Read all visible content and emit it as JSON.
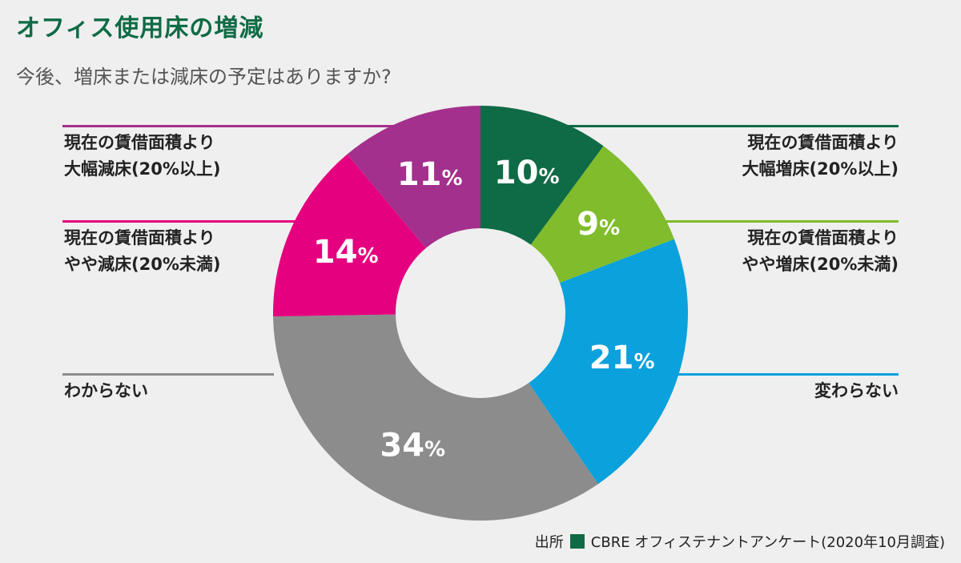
{
  "title": "オフィス使用床の増減",
  "subtitle": "今後、増床または減床の予定はありますか?",
  "source": {
    "prefix": "出所",
    "text": "CBRE オフィステナントアンケート(2020年10月調査)",
    "square_color": "#0f6b45"
  },
  "chart_data": {
    "type": "pie",
    "donut": true,
    "start_angle_deg": 0,
    "direction": "clockwise",
    "slices": [
      {
        "label_lines": [
          "現在の賃借面積より",
          "大幅増床(20%以上)"
        ],
        "value": 10,
        "display": "10",
        "color": "#0f6b45",
        "label_side": "right"
      },
      {
        "label_lines": [
          "現在の賃借面積より",
          "やや増床(20%未満)"
        ],
        "value": 9,
        "display": "9",
        "color": "#80bc2c",
        "label_side": "right"
      },
      {
        "label_lines": [
          "変わらない"
        ],
        "value": 21,
        "display": "21",
        "color": "#0aa1dc",
        "label_side": "right"
      },
      {
        "label_lines": [
          "わからない"
        ],
        "value": 34,
        "display": "34",
        "color": "#8c8c8c",
        "label_side": "left"
      },
      {
        "label_lines": [
          "現在の賃借面積より",
          "やや減床(20%未満)"
        ],
        "value": 14,
        "display": "14",
        "color": "#e5007f",
        "label_side": "left"
      },
      {
        "label_lines": [
          "現在の賃借面積より",
          "大幅減床(20%以上)"
        ],
        "value": 11,
        "display": "11",
        "color": "#a3308c",
        "label_side": "left"
      }
    ],
    "percent_sign": "%"
  }
}
